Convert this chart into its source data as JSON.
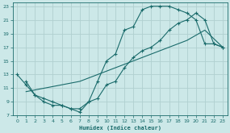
{
  "xlabel": "Humidex (Indice chaleur)",
  "bg_color": "#cce8e8",
  "grid_color": "#b8d8d8",
  "line_color": "#1a6b6b",
  "xlim": [
    -0.5,
    23.5
  ],
  "ylim": [
    7,
    23.5
  ],
  "xticks": [
    0,
    1,
    2,
    3,
    4,
    5,
    6,
    7,
    8,
    9,
    10,
    11,
    12,
    13,
    14,
    15,
    16,
    17,
    18,
    19,
    20,
    21,
    22,
    23
  ],
  "yticks": [
    7,
    9,
    11,
    13,
    15,
    17,
    19,
    21,
    23
  ],
  "line1_x": [
    1,
    2,
    3,
    4,
    5,
    6,
    7,
    8,
    9,
    10,
    11,
    12,
    13,
    14,
    15,
    16,
    17,
    18,
    19,
    20,
    21,
    22,
    23
  ],
  "line1_y": [
    12,
    10,
    9.5,
    9,
    8.5,
    8,
    8,
    9,
    12,
    15,
    16,
    19.5,
    20,
    22.5,
    23,
    23,
    23,
    22.5,
    22,
    21,
    17.5,
    17.5,
    17
  ],
  "line2_x": [
    0,
    1,
    2,
    3,
    4,
    5,
    6,
    7,
    8,
    9,
    10,
    11,
    12,
    13,
    14,
    15,
    16,
    17,
    18,
    19,
    20,
    21,
    22,
    23
  ],
  "line2_y": [
    13,
    11.5,
    10,
    9,
    8.5,
    8.5,
    8,
    7.5,
    9,
    9.5,
    11.5,
    12,
    14,
    15.5,
    16.5,
    17,
    18,
    19.5,
    20.5,
    21,
    22,
    21,
    17.5,
    17
  ],
  "line3_x": [
    1,
    3,
    5,
    7,
    9,
    11,
    13,
    15,
    17,
    19,
    21,
    23
  ],
  "line3_y": [
    10.5,
    11,
    11.5,
    12,
    13,
    14,
    15,
    16,
    17,
    18,
    19.5,
    17
  ]
}
